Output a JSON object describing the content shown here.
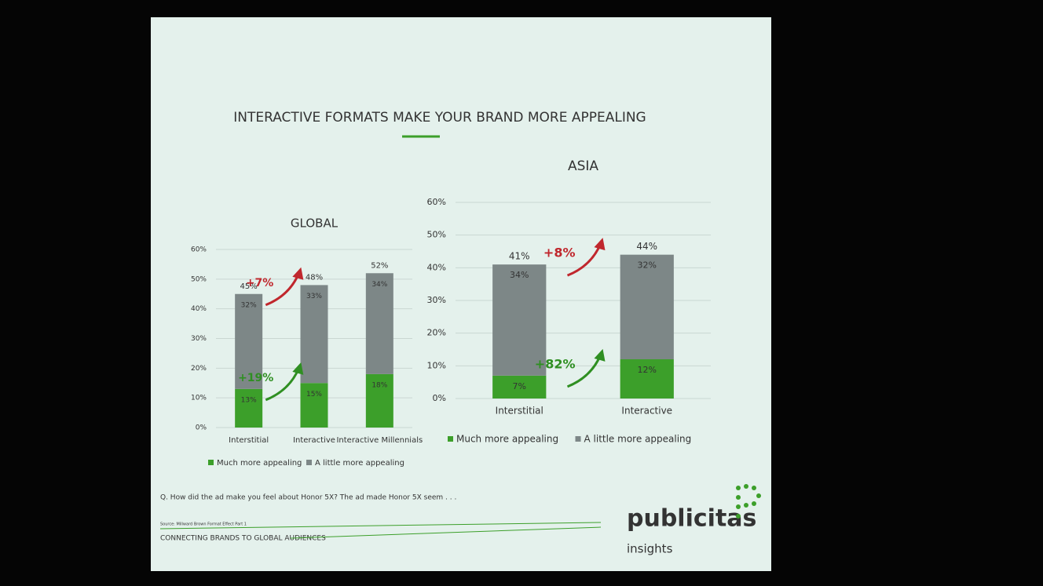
{
  "title": "INTERACTIVE FORMATS MAKE YOUR BRAND MORE APPEALING",
  "chart_data": [
    {
      "type": "bar",
      "stacked": true,
      "title": "GLOBAL",
      "categories": [
        "Interstitial",
        "Interactive",
        "Interactive Millennials"
      ],
      "series": [
        {
          "name": "Much more appealing",
          "color": "#3c9f2a",
          "values": [
            13,
            15,
            18
          ],
          "value_labels": [
            "13%",
            "15%",
            "18%"
          ]
        },
        {
          "name": "A little more appealing",
          "color": "#7d8787",
          "values": [
            32,
            33,
            34
          ],
          "value_labels": [
            "32%",
            "33%",
            "34%"
          ]
        }
      ],
      "totals": {
        "values": [
          45,
          48,
          52
        ],
        "value_labels": [
          "45%",
          "48%",
          "52%"
        ]
      },
      "annotations": [
        "+7%",
        "+19%"
      ],
      "ylim": [
        0,
        60
      ],
      "yticks": [
        {
          "value": 0,
          "label": "0%"
        },
        {
          "value": 10,
          "label": "10%"
        },
        {
          "value": 20,
          "label": "20%"
        },
        {
          "value": 30,
          "label": "30%"
        },
        {
          "value": 40,
          "label": "40%"
        },
        {
          "value": 50,
          "label": "50%"
        },
        {
          "value": 60,
          "label": "60%"
        }
      ],
      "grid": true
    },
    {
      "type": "bar",
      "stacked": true,
      "title": "ASIA",
      "categories": [
        "Interstitial",
        "Interactive"
      ],
      "series": [
        {
          "name": "Much more appealing",
          "color": "#3c9f2a",
          "values": [
            7,
            12
          ],
          "value_labels": [
            "7%",
            "12%"
          ]
        },
        {
          "name": "A little more appealing",
          "color": "#7d8787",
          "values": [
            34,
            32
          ],
          "value_labels": [
            "34%",
            "32%"
          ]
        }
      ],
      "totals": {
        "values": [
          41,
          44
        ],
        "value_labels": [
          "41%",
          "44%"
        ]
      },
      "annotations": [
        "+8%",
        "+82%"
      ],
      "ylim": [
        0,
        60
      ],
      "yticks": [
        {
          "value": 0,
          "label": "0%"
        },
        {
          "value": 10,
          "label": "10%"
        },
        {
          "value": 20,
          "label": "20%"
        },
        {
          "value": 30,
          "label": "30%"
        },
        {
          "value": 40,
          "label": "40%"
        },
        {
          "value": 50,
          "label": "50%"
        },
        {
          "value": 60,
          "label": "60%"
        }
      ],
      "grid": true
    }
  ],
  "question": "Q. How did the ad make you feel about Honor 5X? The ad made Honor 5X seem . . .",
  "source": "Source: Millward Brown Format Effect Part 1",
  "footer": "CONNECTING BRANDS TO GLOBAL AUDIENCES",
  "logo": {
    "name": "publicitas",
    "sub": "insights"
  }
}
